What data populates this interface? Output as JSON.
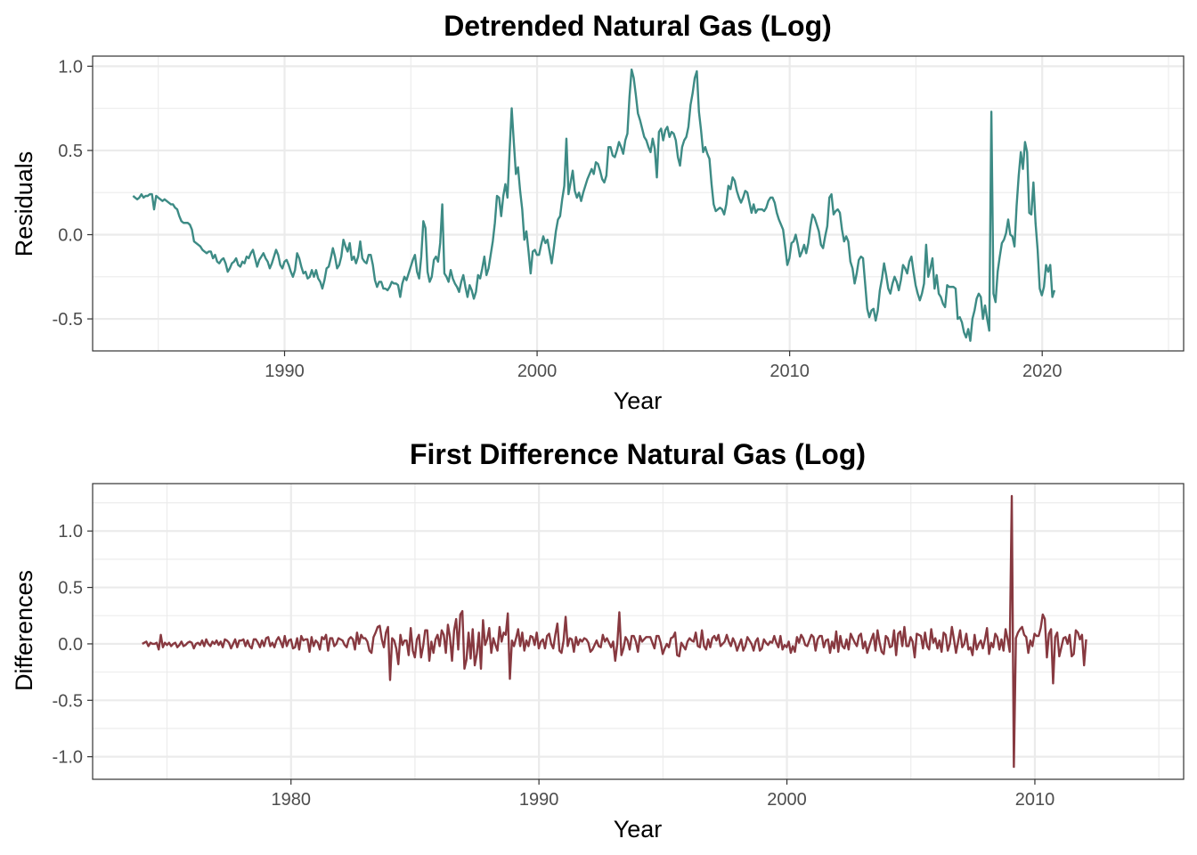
{
  "chart_data": [
    {
      "type": "line",
      "title": "Detrended Natural Gas (Log)",
      "xlabel": "Year",
      "ylabel": "Residuals",
      "xlim": [
        1982.4,
        2025.6
      ],
      "ylim": [
        -0.69,
        1.06
      ],
      "x_ticks": [
        1990,
        2000,
        2010,
        2020
      ],
      "x_tick_labels": [
        "1990",
        "2000",
        "2010",
        "2020"
      ],
      "y_ticks": [
        -0.5,
        0.0,
        0.5,
        1.0
      ],
      "y_tick_labels": [
        "-0.5",
        "0.0",
        "0.5",
        "1.0"
      ],
      "grid": true,
      "series": [
        {
          "color": "#3d8b85",
          "x_start": 1984.0,
          "x_step": 0.0833,
          "values": [
            0.23,
            0.22,
            0.21,
            0.22,
            0.24,
            0.22,
            0.23,
            0.23,
            0.24,
            0.24,
            0.15,
            0.23,
            0.22,
            0.21,
            0.2,
            0.21,
            0.2,
            0.19,
            0.18,
            0.18,
            0.16,
            0.15,
            0.11,
            0.08,
            0.07,
            0.07,
            0.07,
            0.06,
            0.03,
            -0.04,
            -0.05,
            -0.06,
            -0.07,
            -0.09,
            -0.1,
            -0.11,
            -0.1,
            -0.1,
            -0.14,
            -0.12,
            -0.16,
            -0.17,
            -0.15,
            -0.14,
            -0.17,
            -0.22,
            -0.2,
            -0.17,
            -0.16,
            -0.14,
            -0.18,
            -0.19,
            -0.16,
            -0.17,
            -0.13,
            -0.14,
            -0.11,
            -0.09,
            -0.14,
            -0.19,
            -0.15,
            -0.13,
            -0.11,
            -0.14,
            -0.16,
            -0.2,
            -0.17,
            -0.13,
            -0.09,
            -0.12,
            -0.18,
            -0.2,
            -0.16,
            -0.15,
            -0.18,
            -0.22,
            -0.25,
            -0.21,
            -0.11,
            -0.14,
            -0.19,
            -0.23,
            -0.22,
            -0.26,
            -0.25,
            -0.21,
            -0.25,
            -0.21,
            -0.26,
            -0.28,
            -0.32,
            -0.27,
            -0.2,
            -0.19,
            -0.14,
            -0.08,
            -0.13,
            -0.2,
            -0.18,
            -0.13,
            -0.03,
            -0.07,
            -0.1,
            -0.05,
            -0.15,
            -0.13,
            -0.17,
            -0.13,
            -0.04,
            -0.14,
            -0.16,
            -0.17,
            -0.12,
            -0.12,
            -0.18,
            -0.27,
            -0.31,
            -0.28,
            -0.28,
            -0.32,
            -0.32,
            -0.33,
            -0.31,
            -0.28,
            -0.29,
            -0.29,
            -0.3,
            -0.37,
            -0.29,
            -0.25,
            -0.27,
            -0.23,
            -0.19,
            -0.15,
            -0.12,
            -0.22,
            -0.26,
            -0.13,
            0.08,
            0.04,
            -0.22,
            -0.28,
            -0.25,
            -0.15,
            -0.13,
            -0.16,
            -0.05,
            0.18,
            -0.23,
            -0.25,
            -0.28,
            -0.21,
            -0.26,
            -0.29,
            -0.31,
            -0.34,
            -0.28,
            -0.24,
            -0.31,
            -0.37,
            -0.3,
            -0.33,
            -0.38,
            -0.34,
            -0.24,
            -0.26,
            -0.2,
            -0.13,
            -0.24,
            -0.2,
            -0.12,
            -0.04,
            0.07,
            0.23,
            0.22,
            0.11,
            0.23,
            0.3,
            0.22,
            0.5,
            0.75,
            0.55,
            0.36,
            0.4,
            0.26,
            0.15,
            -0.03,
            0.02,
            -0.1,
            -0.23,
            -0.1,
            -0.09,
            -0.12,
            -0.12,
            -0.06,
            -0.01,
            -0.05,
            -0.03,
            -0.1,
            -0.17,
            -0.08,
            0.02,
            0.09,
            0.11,
            0.21,
            0.29,
            0.57,
            0.24,
            0.31,
            0.38,
            0.26,
            0.22,
            0.25,
            0.2,
            0.25,
            0.29,
            0.33,
            0.36,
            0.39,
            0.36,
            0.43,
            0.42,
            0.38,
            0.33,
            0.31,
            0.35,
            0.52,
            0.52,
            0.47,
            0.46,
            0.5,
            0.55,
            0.52,
            0.48,
            0.56,
            0.6,
            0.82,
            0.98,
            0.93,
            0.83,
            0.72,
            0.68,
            0.63,
            0.58,
            0.56,
            0.52,
            0.49,
            0.57,
            0.51,
            0.34,
            0.61,
            0.63,
            0.56,
            0.62,
            0.64,
            0.58,
            0.61,
            0.6,
            0.56,
            0.46,
            0.41,
            0.52,
            0.56,
            0.58,
            0.64,
            0.77,
            0.84,
            0.93,
            0.97,
            0.73,
            0.62,
            0.49,
            0.52,
            0.48,
            0.45,
            0.3,
            0.18,
            0.14,
            0.15,
            0.16,
            0.15,
            0.12,
            0.18,
            0.29,
            0.27,
            0.34,
            0.32,
            0.26,
            0.22,
            0.19,
            0.22,
            0.26,
            0.25,
            0.19,
            0.13,
            0.18,
            0.13,
            0.15,
            0.15,
            0.15,
            0.14,
            0.16,
            0.2,
            0.22,
            0.22,
            0.19,
            0.13,
            0.09,
            0.06,
            0.03,
            -0.07,
            -0.18,
            -0.14,
            -0.05,
            -0.04,
            0.0,
            -0.06,
            -0.13,
            -0.1,
            -0.06,
            -0.11,
            -0.05,
            0.05,
            0.12,
            0.1,
            0.06,
            0.02,
            -0.06,
            -0.08,
            -0.01,
            0.05,
            0.22,
            0.24,
            0.12,
            0.14,
            0.15,
            0.13,
            0.03,
            -0.04,
            -0.01,
            -0.04,
            -0.16,
            -0.2,
            -0.29,
            -0.23,
            -0.15,
            -0.13,
            -0.14,
            -0.29,
            -0.44,
            -0.49,
            -0.45,
            -0.44,
            -0.51,
            -0.45,
            -0.33,
            -0.26,
            -0.17,
            -0.24,
            -0.32,
            -0.35,
            -0.29,
            -0.25,
            -0.28,
            -0.33,
            -0.27,
            -0.18,
            -0.2,
            -0.23,
            -0.16,
            -0.13,
            -0.22,
            -0.3,
            -0.35,
            -0.39,
            -0.35,
            -0.29,
            -0.06,
            -0.25,
            -0.2,
            -0.14,
            -0.32,
            -0.24,
            -0.35,
            -0.37,
            -0.41,
            -0.43,
            -0.3,
            -0.31,
            -0.31,
            -0.31,
            -0.32,
            -0.5,
            -0.49,
            -0.52,
            -0.58,
            -0.61,
            -0.56,
            -0.63,
            -0.5,
            -0.45,
            -0.38,
            -0.35,
            -0.37,
            -0.5,
            -0.42,
            -0.5,
            -0.57,
            0.73,
            -0.35,
            -0.4,
            -0.22,
            -0.13,
            -0.05,
            -0.03,
            0.01,
            0.09,
            0.0,
            -0.01,
            -0.07,
            0.17,
            0.35,
            0.49,
            0.39,
            0.55,
            0.49,
            0.13,
            0.12,
            0.31,
            0.07,
            -0.09,
            -0.32,
            -0.36,
            -0.31,
            -0.18,
            -0.22,
            -0.18,
            -0.37,
            -0.33
          ]
        }
      ]
    },
    {
      "type": "line",
      "title": "First Difference Natural Gas (Log)",
      "xlabel": "Year",
      "ylabel": "Differences",
      "xlim": [
        1972.0,
        2016.0
      ],
      "ylim": [
        -1.2,
        1.42
      ],
      "x_ticks": [
        1980,
        1990,
        2000,
        2010
      ],
      "x_tick_labels": [
        "1980",
        "1990",
        "2000",
        "2010"
      ],
      "y_ticks": [
        -1.0,
        -0.5,
        0.0,
        0.5,
        1.0
      ],
      "y_tick_labels": [
        "-1.0",
        "-0.5",
        "0.0",
        "0.5",
        "1.0"
      ],
      "grid": true,
      "series": [
        {
          "color": "#873940",
          "x_start": 1974.0,
          "x_step": 0.0833,
          "values": [
            0.0,
            0.01,
            0.02,
            -0.02,
            0.01,
            0.0,
            0.0,
            0.01,
            -0.05,
            0.08,
            -0.03,
            0.01,
            -0.01,
            0.01,
            -0.02,
            0.0,
            0.01,
            -0.03,
            -0.01,
            0.02,
            -0.02,
            -0.01,
            0.01,
            0.02,
            0.01,
            -0.04,
            0.0,
            0.01,
            -0.01,
            0.03,
            -0.02,
            0.04,
            0.0,
            -0.02,
            0.02,
            0.0,
            0.03,
            -0.01,
            0.02,
            -0.03,
            0.04,
            0.03,
            0.01,
            -0.04,
            0.0,
            0.04,
            -0.03,
            0.03,
            0.03,
            0.04,
            -0.02,
            0.03,
            -0.02,
            -0.04,
            0.04,
            0.04,
            0.01,
            -0.03,
            0.03,
            -0.02,
            0.05,
            0.06,
            -0.02,
            0.01,
            -0.03,
            0.03,
            0.06,
            0.02,
            -0.03,
            0.07,
            -0.02,
            0.03,
            0.04,
            -0.04,
            -0.03,
            0.05,
            -0.05,
            0.07,
            0.03,
            0.04,
            0.04,
            -0.07,
            0.06,
            -0.02,
            0.03,
            0.01,
            -0.05,
            0.06,
            0.04,
            0.08,
            -0.06,
            0.05,
            0.05,
            -0.02,
            0.0,
            0.05,
            0.04,
            0.03,
            -0.01,
            -0.03,
            0.04,
            0.06,
            0.04,
            -0.05,
            0.1,
            0.0,
            0.08,
            0.05,
            0.05,
            0.02,
            -0.06,
            -0.08,
            0.06,
            0.1,
            0.15,
            0.16,
            0.04,
            -0.03,
            0.1,
            0.15,
            -0.32,
            0.05,
            0.03,
            -0.04,
            -0.18,
            0.08,
            -0.01,
            0.03,
            0.03,
            -0.1,
            0.14,
            -0.06,
            -0.12,
            0.04,
            0.08,
            -0.12,
            -0.02,
            0.12,
            0.12,
            -0.15,
            0.02,
            -0.08,
            0.04,
            0.08,
            -0.02,
            0.12,
            0.08,
            -0.08,
            0.17,
            0.06,
            -0.15,
            0.12,
            0.22,
            -0.05,
            0.26,
            0.29,
            -0.22,
            -0.14,
            0.1,
            -0.13,
            0.13,
            -0.19,
            -0.09,
            0.1,
            -0.22,
            0.21,
            -0.01,
            0.04,
            0.14,
            -0.08,
            0.05,
            -0.01,
            -0.06,
            0.15,
            0.02,
            0.1,
            0.08,
            0.27,
            -0.31,
            0.03,
            -0.02,
            0.05,
            0.13,
            -0.02,
            0.1,
            -0.06,
            0.03,
            -0.02,
            0.07,
            0.06,
            -0.01,
            0.1,
            -0.04,
            0.02,
            0.04,
            -0.04,
            0.07,
            0.09,
            0.0,
            -0.04,
            0.08,
            0.18,
            -0.06,
            -0.08,
            0.03,
            0.24,
            -0.02,
            0.05,
            0.04,
            -0.07,
            0.06,
            -0.01,
            0.04,
            0.02,
            0.05,
            0.04,
            0.01,
            -0.07,
            -0.05,
            -0.01,
            0.03,
            -0.02,
            -0.03,
            0.08,
            0.02,
            0.05,
            0.01,
            -0.03,
            0.02,
            -0.15,
            0.0,
            0.28,
            -0.1,
            -0.04,
            0.06,
            0.03,
            -0.05,
            0.07,
            0.07,
            0.02,
            -0.07,
            0.07,
            0.02,
            0.04,
            0.06,
            0.06,
            0.06,
            0.01,
            -0.04,
            0.07,
            0.07,
            0.01,
            -0.09,
            -0.04,
            0.0,
            -0.03,
            0.05,
            0.06,
            0.1,
            -0.1,
            -0.11,
            0.01,
            -0.02,
            -0.05,
            0.02,
            0.05,
            0.03,
            0.02,
            0.1,
            -0.02,
            -0.03,
            0.12,
            -0.02,
            -0.05,
            0.04,
            -0.03,
            0.05,
            0.07,
            0.03,
            0.08,
            -0.02,
            0.0,
            0.02,
            0.08,
            0.02,
            -0.02,
            0.05,
            0.01,
            -0.06,
            -0.01,
            0.04,
            -0.06,
            -0.02,
            0.06,
            0.03,
            0.0,
            -0.06,
            0.02,
            0.05,
            -0.06,
            -0.04,
            0.04,
            0.01,
            -0.01,
            0.02,
            0.01,
            0.07,
            0.01,
            -0.03,
            0.07,
            -0.05,
            -0.01,
            -0.03,
            0.02,
            -0.08,
            -0.02,
            -0.07,
            0.06,
            0.01,
            0.08,
            0.05,
            -0.01,
            -0.02,
            0.03,
            0.08,
            0.06,
            -0.06,
            0.04,
            0.07,
            0.07,
            -0.03,
            0.03,
            0.04,
            -0.08,
            0.02,
            -0.04,
            0.11,
            -0.07,
            0.07,
            -0.02,
            -0.04,
            0.04,
            -0.05,
            0.09,
            0.05,
            0.01,
            -0.02,
            0.07,
            0.09,
            -0.04,
            0.02,
            -0.08,
            -0.02,
            0.04,
            0.09,
            -0.06,
            0.12,
            0.01,
            -0.07,
            -0.09,
            0.07,
            0.05,
            -0.03,
            -0.02,
            0.12,
            -0.1,
            0.09,
            0.11,
            -0.02,
            0.15,
            -0.02,
            -0.02,
            0.06,
            0.02,
            -0.12,
            0.09,
            0.08,
            0.07,
            -0.04,
            0.1,
            -0.02,
            -0.05,
            0.13,
            0.01,
            0.05,
            -0.04,
            0.03,
            -0.07,
            0.1,
            0.08,
            -0.06,
            0.0,
            0.15,
            0.04,
            -0.08,
            0.02,
            0.12,
            -0.03,
            0.0,
            0.09,
            -0.05,
            -0.03,
            -0.1,
            0.08,
            -0.05,
            0.0,
            0.03,
            -0.04,
            0.04,
            0.14,
            -0.09,
            0.01,
            -0.03,
            0.09,
            0.06,
            -0.05,
            0.04,
            -0.06,
            0.13,
            0.04,
            -0.07,
            1.31,
            -1.09,
            0.05,
            0.1,
            0.13,
            0.15,
            0.08,
            0.06,
            -0.08,
            0.03,
            -0.02,
            0.09,
            0.07,
            0.07,
            0.14,
            0.26,
            0.22,
            -0.12,
            0.09,
            0.13,
            -0.35,
            0.06,
            0.1,
            -0.11,
            -0.03,
            0.05,
            0.06,
            0.0,
            0.08,
            -0.11,
            -0.09,
            0.12,
            0.1,
            0.04,
            0.08,
            -0.19,
            0.04
          ]
        }
      ]
    }
  ]
}
